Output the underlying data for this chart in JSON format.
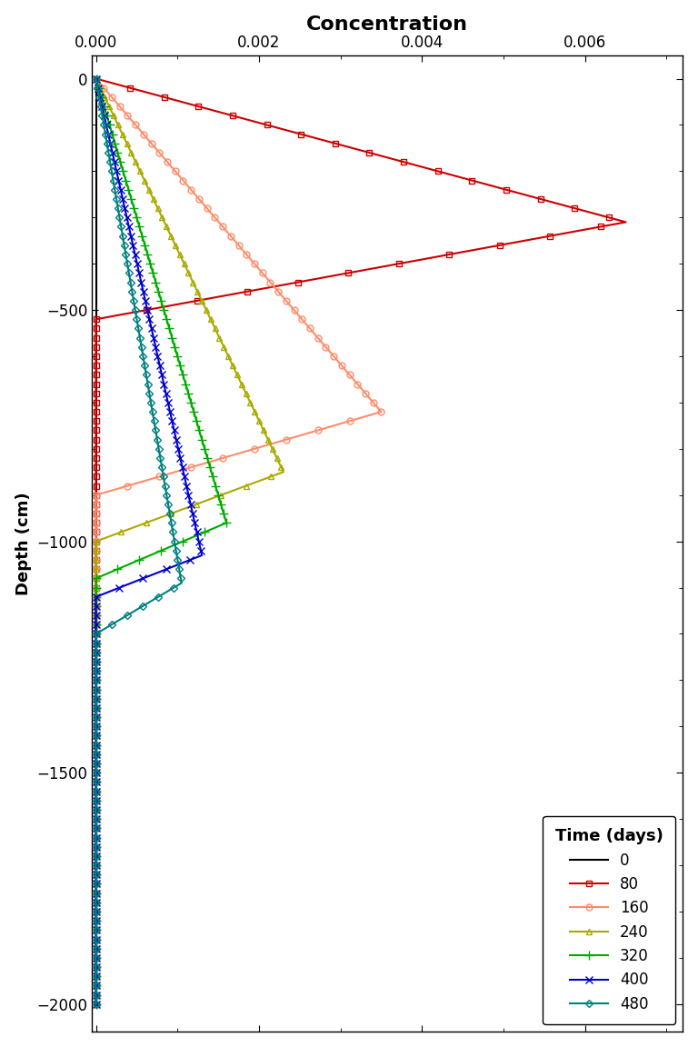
{
  "title": "Concentration",
  "ylabel": "Depth (cm)",
  "xlim": [
    -5e-05,
    0.0072
  ],
  "ylim": [
    -2060,
    50
  ],
  "xticks": [
    0.0,
    0.002,
    0.004,
    0.006
  ],
  "yticks": [
    0,
    -500,
    -1000,
    -1500,
    -2000
  ],
  "background_color": "#ffffff",
  "legend_title": "Time (days)",
  "legend_title_fontsize": 13,
  "legend_fontsize": 12,
  "title_fontsize": 16,
  "axis_label_fontsize": 13,
  "tick_fontsize": 12,
  "series": [
    {
      "label": "0",
      "color": "#000000",
      "marker": "none",
      "linestyle": "-",
      "linewidth": 1.5,
      "markersize": 5,
      "markerfacecolor": "none"
    },
    {
      "label": "80",
      "color": "#cc0000",
      "marker": "s",
      "linestyle": "-",
      "linewidth": 1.5,
      "markersize": 5,
      "markerfacecolor": "none"
    },
    {
      "label": "160",
      "color": "#ff8c69",
      "marker": "o",
      "linestyle": "-",
      "linewidth": 1.5,
      "markersize": 5,
      "markerfacecolor": "none"
    },
    {
      "label": "240",
      "color": "#aaaa00",
      "marker": "^",
      "linestyle": "-",
      "linewidth": 1.5,
      "markersize": 5,
      "markerfacecolor": "none"
    },
    {
      "label": "320",
      "color": "#00aa00",
      "marker": "+",
      "linestyle": "-",
      "linewidth": 1.5,
      "markersize": 7,
      "markerfacecolor": "#00aa00"
    },
    {
      "label": "400",
      "color": "#0000cc",
      "marker": "x",
      "linestyle": "-",
      "linewidth": 1.5,
      "markersize": 6,
      "markerfacecolor": "#0000cc"
    },
    {
      "label": "480",
      "color": "#008080",
      "marker": "D",
      "linestyle": "-",
      "linewidth": 1.5,
      "markersize": 4,
      "markerfacecolor": "none"
    }
  ]
}
